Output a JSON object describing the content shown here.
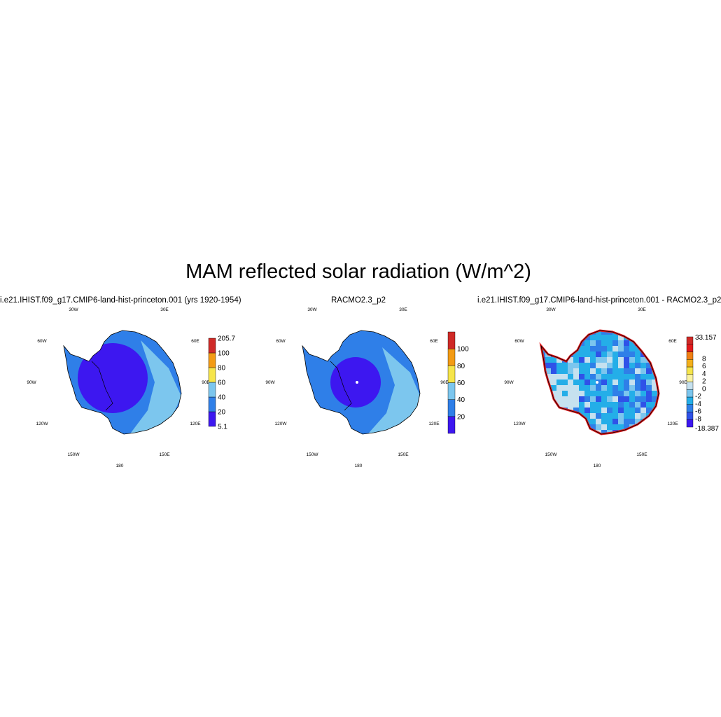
{
  "figure": {
    "title": "MAM reflected solar radiation (W/m^2)"
  },
  "panels": [
    {
      "title": "i.e21.IHIST.f09_g17.CMIP6-land-hist-princeton.001 (yrs 1920-1954)",
      "colorbar": {
        "colors": [
          "#3d17f0",
          "#2f7fe8",
          "#7cc6ee",
          "#f6e54a",
          "#f39b14",
          "#e8591a",
          "#cf2a27"
        ],
        "labels": [
          "5.1",
          "20",
          "40",
          "60",
          "80",
          "100",
          "205.7"
        ]
      },
      "field_colors": [
        "#3d17f0",
        "#2f7fe8",
        "#7cc6ee"
      ]
    },
    {
      "title": "RACMO2.3_p2",
      "colorbar": {
        "colors": [
          "#3d17f0",
          "#2f7fe8",
          "#7cc6ee",
          "#f6e54a",
          "#f39b14",
          "#e8591a",
          "#cf2a27"
        ],
        "labels": [
          "20",
          "40",
          "60",
          "80",
          "100"
        ]
      },
      "field_colors": [
        "#3d17f0",
        "#2f7fe8",
        "#7cc6ee"
      ]
    },
    {
      "title": "i.e21.IHIST.f09_g17.CMIP6-land-hist-princeton.001 - RACMO2.3_p2",
      "colorbar": {
        "colors": [
          "#3d17f0",
          "#2f52e8",
          "#2f7fe8",
          "#24aee8",
          "#7cc6ee",
          "#c6e1ef",
          "#fbf3a0",
          "#f6e54a",
          "#f3b01b",
          "#f08014",
          "#e31a1c",
          "#cf2a27"
        ],
        "labels": [
          "-18.387",
          "-8",
          "-6",
          "-4",
          "-2",
          "0",
          "2",
          "4",
          "6",
          "8",
          "33.157"
        ]
      },
      "field_colors": [
        "#2f7fe8",
        "#24aee8",
        "#7cc6ee",
        "#c6e1ef",
        "#2f52e8"
      ]
    }
  ],
  "longitude_labels": [
    "30W",
    "30E",
    "60W",
    "60E",
    "90W",
    "90E",
    "120W",
    "120E",
    "150W",
    "150E",
    "180"
  ]
}
